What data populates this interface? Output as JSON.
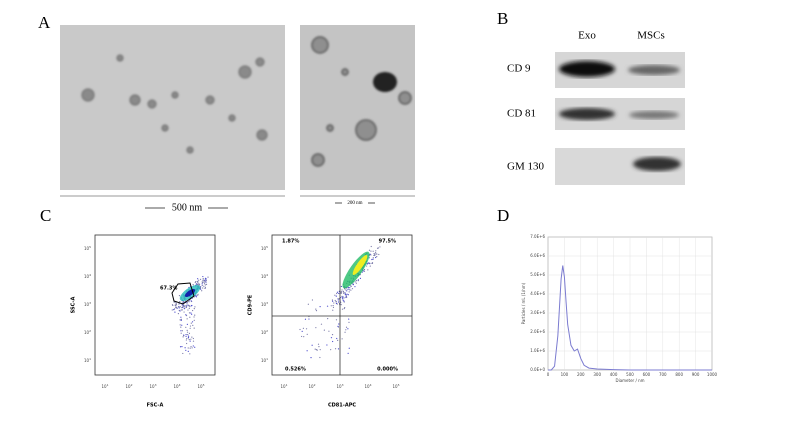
{
  "panel_labels": [
    "A",
    "B",
    "C",
    "D"
  ],
  "tem": {
    "scale_bars": [
      "500 nm",
      "200 nm"
    ]
  },
  "blot": {
    "lanes": [
      "Exo",
      "MSCs"
    ],
    "markers": [
      "CD 9",
      "CD 81",
      "GM 130"
    ]
  },
  "flow": {
    "tick_base": "10",
    "tick_exponents": [
      "1",
      "2",
      "3",
      "4",
      "5"
    ],
    "plots": [
      {
        "x_label": "FSC-A",
        "y_label": "SSC-A",
        "gates": [
          "67.3%"
        ]
      },
      {
        "x_label": "CD81-APC",
        "y_label": "CD9-PE",
        "gates": [
          "1.87%",
          "97.5%",
          "0.526%",
          "0.000%"
        ]
      }
    ]
  },
  "chart_data": {
    "type": "line",
    "x_label": "Diameter / nm",
    "y_label": "Particles / mL (1/nm)",
    "x": [
      0,
      20,
      40,
      60,
      80,
      90,
      100,
      110,
      120,
      140,
      160,
      180,
      200,
      220,
      250,
      300,
      400,
      500,
      600,
      700,
      800,
      900,
      1000
    ],
    "values": [
      0,
      0,
      200000,
      1800000,
      4800000,
      5500000,
      4900000,
      3600000,
      2400000,
      1300000,
      1000000,
      1100000,
      600000,
      250000,
      100000,
      50000,
      20000,
      0,
      0,
      0,
      0,
      0,
      0
    ],
    "color": "#7b7bd0",
    "xlim": [
      0,
      1000
    ],
    "ylim": [
      0,
      7000000
    ],
    "xticks": [
      0,
      100,
      200,
      300,
      400,
      500,
      600,
      700,
      800,
      900,
      1000
    ],
    "yticks": [
      {
        "value": 0,
        "label": "0.0E+0"
      },
      {
        "value": 1000000,
        "label": "1.0E+6"
      },
      {
        "value": 2000000,
        "label": "2.0E+6"
      },
      {
        "value": 3000000,
        "label": "3.0E+6"
      },
      {
        "value": 4000000,
        "label": "4.0E+6"
      },
      {
        "value": 5000000,
        "label": "5.0E+6"
      },
      {
        "value": 6000000,
        "label": "6.0E+6"
      },
      {
        "value": 7000000,
        "label": "7.0E+6"
      }
    ]
  }
}
